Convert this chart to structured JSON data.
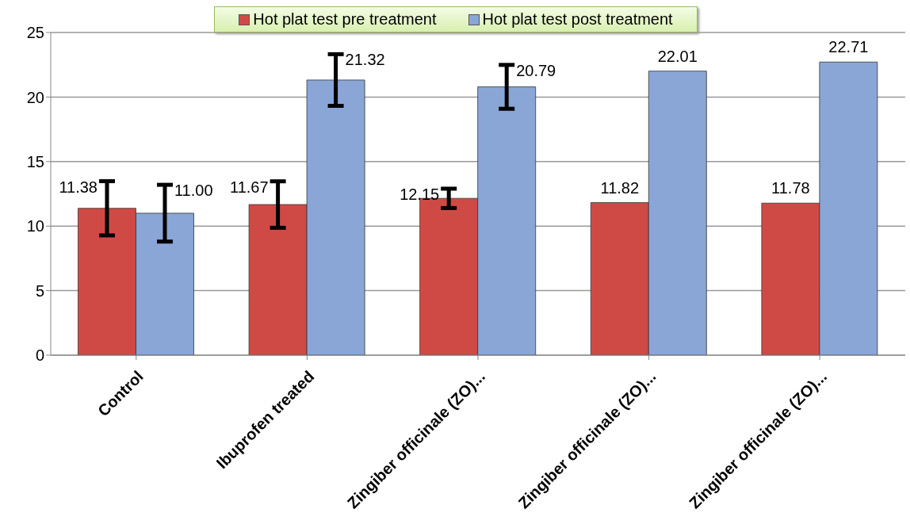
{
  "chart_data": {
    "type": "bar",
    "categories": [
      "Control",
      "Ibuprofen treated",
      "Zingiber officinale (ZO)...",
      "Zingiber officinale (ZO)...",
      "Zingiber officinale (ZO)..."
    ],
    "series": [
      {
        "name": "Hot plat test pre treatment",
        "color": "#d04a45",
        "values": [
          11.38,
          11.67,
          12.15,
          11.82,
          11.78
        ],
        "errors": [
          2.1,
          1.8,
          0.75,
          null,
          null
        ],
        "value_labels": [
          "11.38",
          "11.67",
          "12.15",
          "11.82",
          "11.78"
        ]
      },
      {
        "name": "Hot plat test post treatment",
        "color": "#89a6d6",
        "values": [
          11.0,
          21.32,
          20.79,
          22.01,
          22.71
        ],
        "errors": [
          2.2,
          2.0,
          1.7,
          null,
          null
        ],
        "value_labels": [
          "11.00",
          "21.32",
          "20.79",
          "22.01",
          "22.71"
        ]
      }
    ],
    "ylim": [
      0,
      25
    ],
    "yticks": [
      0,
      5,
      10,
      15,
      20,
      25
    ],
    "grid": "y",
    "legend": "top"
  }
}
